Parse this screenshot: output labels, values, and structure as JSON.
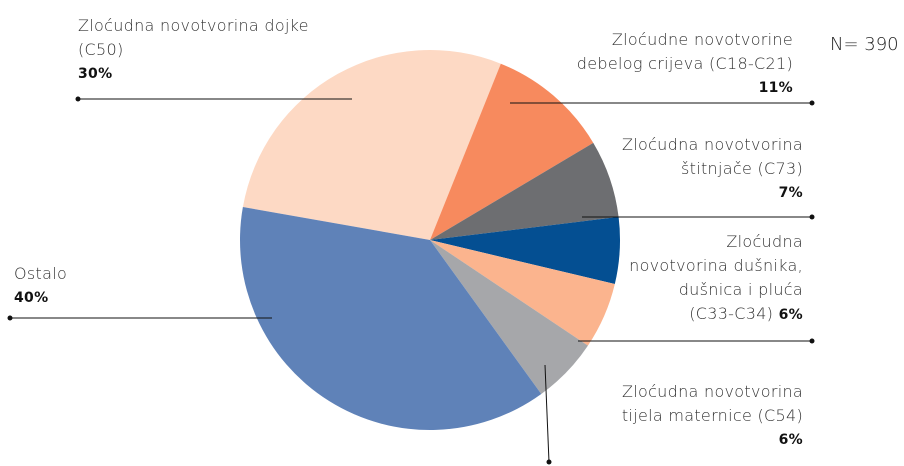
{
  "chart_data": {
    "type": "pie",
    "annotation": "N= 390",
    "categories": [
      "Zloćudna novotvorina dojke\n(C50)",
      "Zloćudne novotvorine\ndebelog crijeva (C18-C21)",
      "Zloćudna novotvorina\nštitnjače  (C73)",
      null,
      "Zloćudna\nnovotvorina dušnika,\ndušnica i pluća\n(C33-C34)",
      "Zloćudna novotvorina\ntijela maternice (C54)",
      "Ostalo"
    ],
    "values": [
      30,
      11,
      7,
      6,
      6,
      6,
      40
    ],
    "value_labels": [
      "30%",
      "11%",
      "7%",
      null,
      "6%",
      "6%",
      "40%"
    ],
    "colors": [
      "#fdd9c4",
      "#f78a5e",
      "#6d6e71",
      "#044f92",
      "#fbb48e",
      "#a6a7aa",
      "#5f82b8"
    ]
  }
}
